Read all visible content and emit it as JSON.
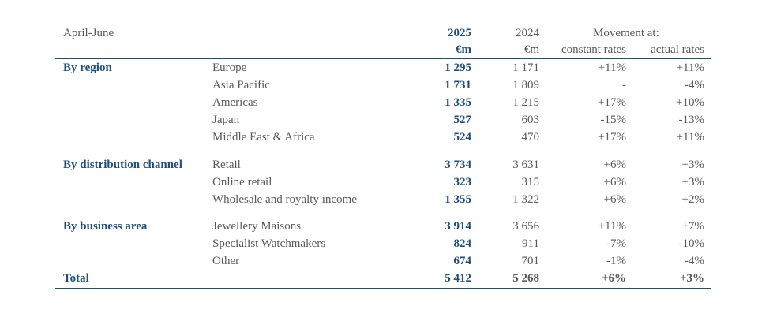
{
  "header": {
    "period": "April-June",
    "col_2025": "2025",
    "col_2024": "2024",
    "unit_2025": "€m",
    "unit_2024": "€m",
    "movement": "Movement at:",
    "constant": "constant rates",
    "actual": "actual rates"
  },
  "sections": [
    {
      "label": "By region",
      "rows": [
        {
          "item": "Europe",
          "v2025": "1 295",
          "v2024": "1 171",
          "constant": "+11%",
          "actual": "+11%"
        },
        {
          "item": "Asia Pacific",
          "v2025": "1 731",
          "v2024": "1 809",
          "constant": "-",
          "actual": "-4%"
        },
        {
          "item": "Americas",
          "v2025": "1 335",
          "v2024": "1 215",
          "constant": "+17%",
          "actual": "+10%"
        },
        {
          "item": "Japan",
          "v2025": "527",
          "v2024": "603",
          "constant": "-15%",
          "actual": "-13%"
        },
        {
          "item": "Middle East & Africa",
          "v2025": "524",
          "v2024": "470",
          "constant": "+17%",
          "actual": "+11%"
        }
      ]
    },
    {
      "label": "By distribution channel",
      "rows": [
        {
          "item": "Retail",
          "v2025": "3 734",
          "v2024": "3 631",
          "constant": "+6%",
          "actual": "+3%"
        },
        {
          "item": "Online retail",
          "v2025": "323",
          "v2024": "315",
          "constant": "+6%",
          "actual": "+3%"
        },
        {
          "item": "Wholesale and royalty income",
          "v2025": "1 355",
          "v2024": "1 322",
          "constant": "+6%",
          "actual": "+2%"
        }
      ]
    },
    {
      "label": "By business area",
      "rows": [
        {
          "item": "Jewellery Maisons",
          "v2025": "3 914",
          "v2024": "3 656",
          "constant": "+11%",
          "actual": "+7%"
        },
        {
          "item": "Specialist Watchmakers",
          "v2025": "824",
          "v2024": "911",
          "constant": "-7%",
          "actual": "-10%"
        },
        {
          "item": "Other",
          "v2025": "674",
          "v2024": "701",
          "constant": "-1%",
          "actual": "-4%"
        }
      ]
    }
  ],
  "total": {
    "label": "Total",
    "v2025": "5 412",
    "v2024": "5 268",
    "constant": "+6%",
    "actual": "+3%"
  }
}
